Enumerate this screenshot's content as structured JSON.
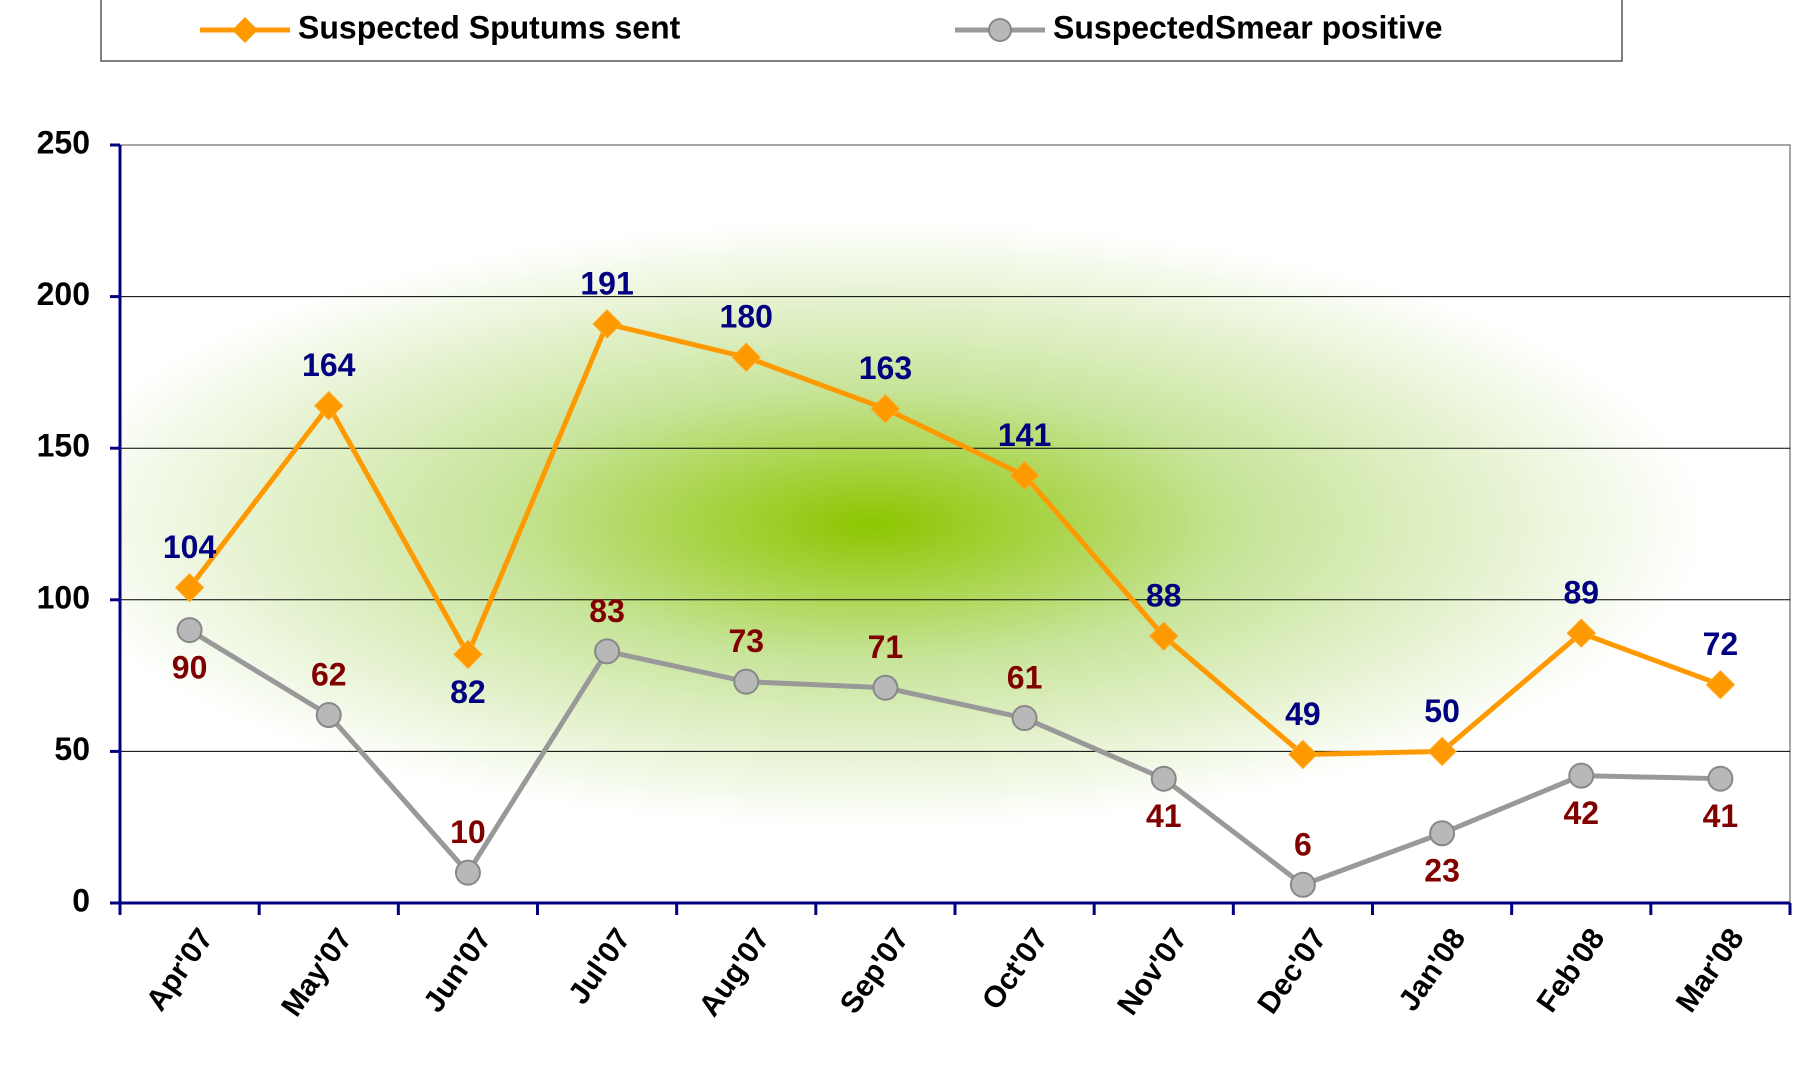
{
  "chart_data": {
    "type": "line",
    "categories": [
      "Apr'07",
      "May'07",
      "Jun'07",
      "Jul'07",
      "Aug'07",
      "Sep'07",
      "Oct'07",
      "Nov'07",
      "Dec'07",
      "Jan'08",
      "Feb'08",
      "Mar'08"
    ],
    "series": [
      {
        "name": "Suspected Sputums sent",
        "color": "#FF9900",
        "label_color": "#000080",
        "values": [
          104,
          164,
          82,
          191,
          180,
          163,
          141,
          88,
          49,
          50,
          89,
          72
        ]
      },
      {
        "name": "SuspectedSmear positive",
        "color": "#999999",
        "label_color": "#800000",
        "values": [
          90,
          62,
          10,
          83,
          73,
          71,
          61,
          41,
          6,
          23,
          42,
          41
        ]
      }
    ],
    "ylim": [
      0,
      250
    ],
    "yticks": [
      0,
      50,
      100,
      150,
      200,
      250
    ],
    "grid": true
  }
}
